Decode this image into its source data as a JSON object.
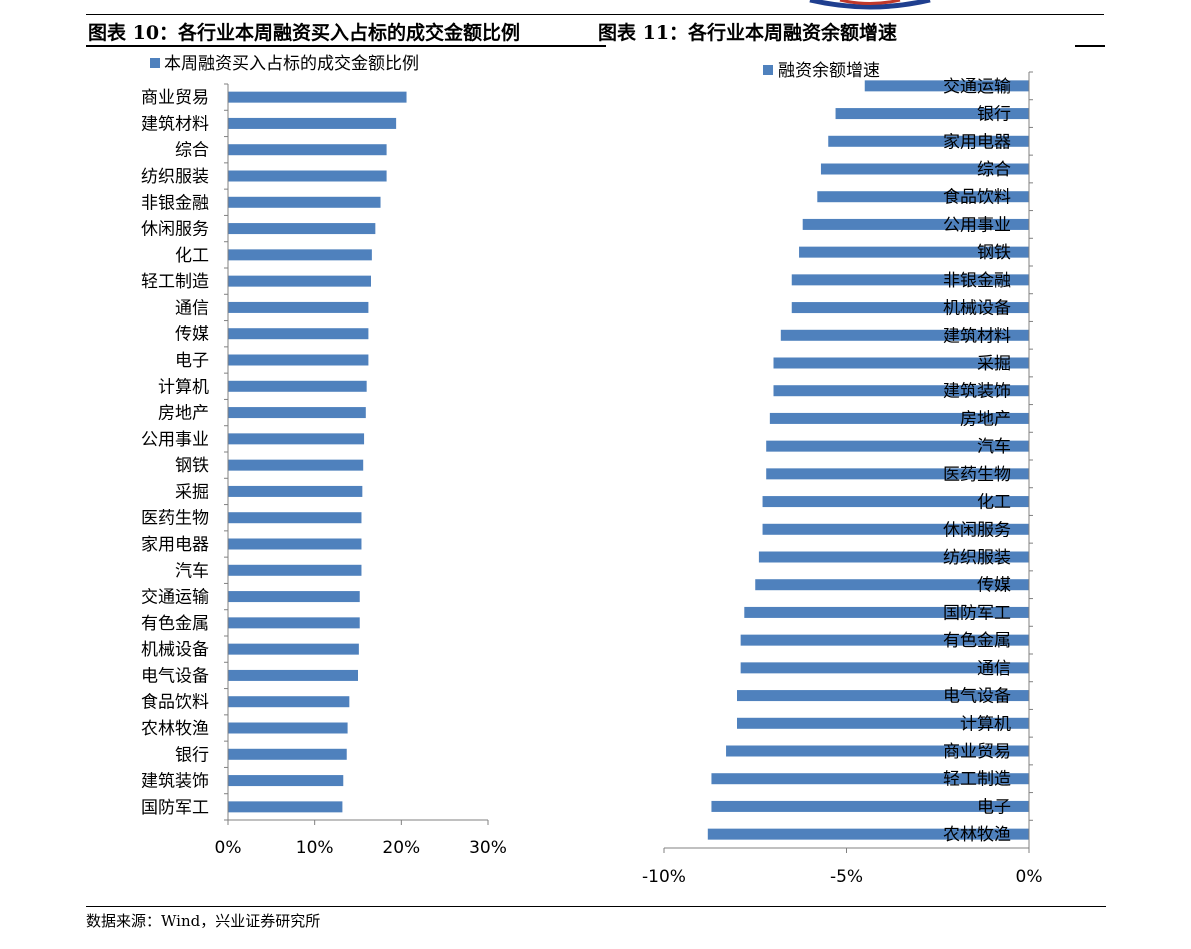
{
  "header": {
    "left_title": "图表 10：各行业本周融资买入占标的成交金额比例",
    "right_title": "图表 11：各行业本周融资余额增速"
  },
  "footer": {
    "source": "数据来源：Wind，兴业证券研究所"
  },
  "colors": {
    "bar": "#4F81BD",
    "axis": "#808080"
  },
  "chart_data": [
    {
      "type": "bar",
      "orientation": "horizontal",
      "legend": "本周融资买入占标的成交金额比例",
      "legend_position": "top-left",
      "categories": [
        "商业贸易",
        "建筑材料",
        "综合",
        "纺织服装",
        "非银金融",
        "休闲服务",
        "化工",
        "轻工制造",
        "通信",
        "传媒",
        "电子",
        "计算机",
        "房地产",
        "公用事业",
        "钢铁",
        "采掘",
        "医药生物",
        "家用电器",
        "汽车",
        "交通运输",
        "有色金属",
        "机械设备",
        "电气设备",
        "食品饮料",
        "农林牧渔",
        "银行",
        "建筑装饰",
        "国防军工"
      ],
      "values": [
        20.6,
        19.4,
        18.3,
        18.3,
        17.6,
        17.0,
        16.6,
        16.5,
        16.2,
        16.2,
        16.2,
        16.0,
        15.9,
        15.7,
        15.6,
        15.5,
        15.4,
        15.4,
        15.4,
        15.2,
        15.2,
        15.1,
        15.0,
        14.0,
        13.8,
        13.7,
        13.3,
        13.2
      ],
      "xlim": [
        0,
        30
      ],
      "xticks": [
        "0%",
        "10%",
        "20%",
        "30%"
      ],
      "grid": false
    },
    {
      "type": "bar",
      "orientation": "horizontal",
      "legend": "融资余额增速",
      "legend_position": "top-left",
      "categories": [
        "交通运输",
        "银行",
        "家用电器",
        "综合",
        "食品饮料",
        "公用事业",
        "钢铁",
        "非银金融",
        "机械设备",
        "建筑材料",
        "采掘",
        "建筑装饰",
        "房地产",
        "汽车",
        "医药生物",
        "化工",
        "休闲服务",
        "纺织服装",
        "传媒",
        "国防军工",
        "有色金属",
        "通信",
        "电气设备",
        "计算机",
        "商业贸易",
        "轻工制造",
        "电子",
        "农林牧渔"
      ],
      "values": [
        -4.5,
        -5.3,
        -5.5,
        -5.7,
        -5.8,
        -6.2,
        -6.3,
        -6.5,
        -6.5,
        -6.8,
        -7.0,
        -7.0,
        -7.1,
        -7.2,
        -7.2,
        -7.3,
        -7.3,
        -7.4,
        -7.5,
        -7.8,
        -7.9,
        -7.9,
        -8.0,
        -8.0,
        -8.3,
        -8.7,
        -8.7,
        -8.8
      ],
      "xlim": [
        -10,
        0
      ],
      "xticks": [
        "-10%",
        "-5%",
        "0%"
      ],
      "grid": false
    }
  ]
}
